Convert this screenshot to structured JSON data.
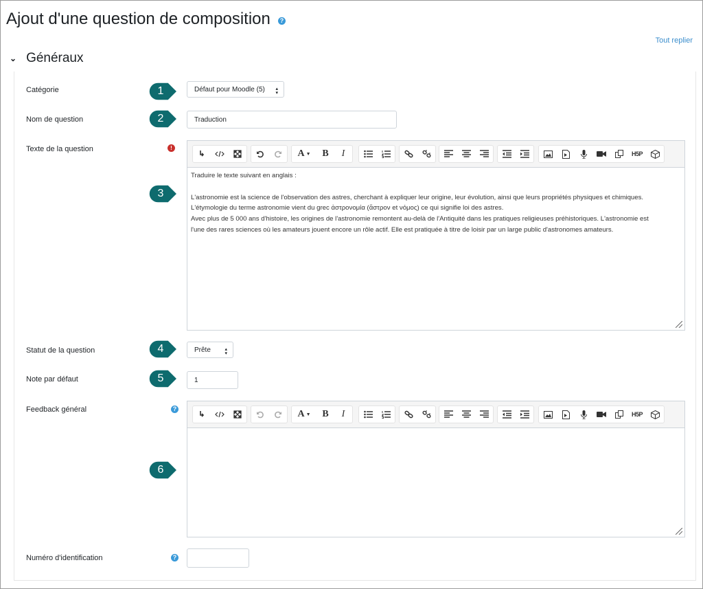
{
  "page": {
    "title": "Ajout d'une question de composition",
    "help_icon": "question-circle-icon",
    "collapse_all": "Tout replier"
  },
  "section": {
    "title": "Généraux"
  },
  "fields": {
    "category": {
      "label": "Catégorie",
      "value": "Défaut pour Moodle (5)"
    },
    "name": {
      "label": "Nom de question",
      "value": "Traduction"
    },
    "text": {
      "label": "Texte de la question",
      "content": [
        "Traduire le texte suivant en anglais :",
        "",
        "L'astronomie est la science de l'observation des astres, cherchant à expliquer leur origine, leur évolution, ainsi que leurs propriétés physiques et chimiques.",
        "L'étymologie du terme astronomie vient du grec ἀστρονομία (ἄστρον et νόμος) ce qui signifie loi des astres.",
        "Avec plus de 5 000 ans d'histoire, les origines de l'astronomie remontent au-delà de l'Antiquité dans les pratiques religieuses préhistoriques. L'astronomie est",
        "l'une des rares sciences où les amateurs jouent encore un rôle actif. Elle est pratiquée à titre de loisir par un large public d'astronomes amateurs."
      ]
    },
    "status": {
      "label": "Statut de la question",
      "value": "Prête"
    },
    "default_mark": {
      "label": "Note par défaut",
      "value": "1"
    },
    "feedback": {
      "label": "Feedback général",
      "content": []
    },
    "idnumber": {
      "label": "Numéro d'identification",
      "value": ""
    }
  },
  "toolbar": {
    "color_label": "A",
    "bold_label": "B",
    "italic_label": "I",
    "h5p_label": "H5P"
  },
  "callouts": [
    "1",
    "2",
    "3",
    "4",
    "5",
    "6"
  ],
  "colors": {
    "callout": "#0e6b6e",
    "link": "#3a8dcc",
    "required": "#c9302c",
    "help": "#3a9ad9"
  }
}
